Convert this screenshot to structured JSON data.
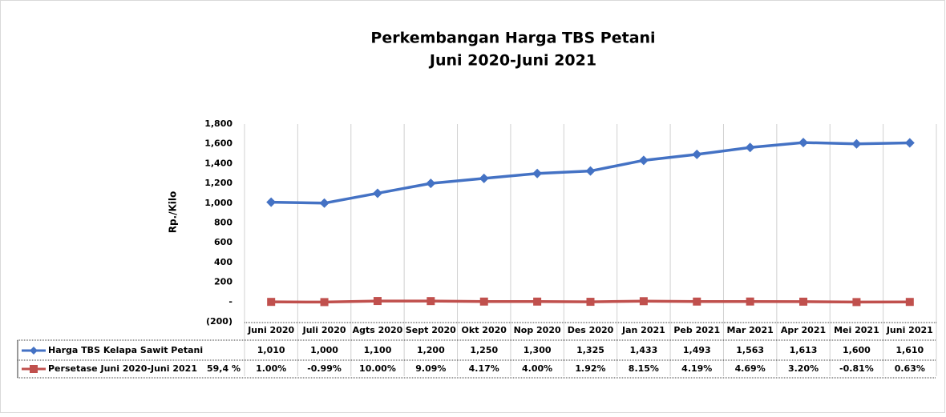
{
  "chart_data": {
    "type": "line",
    "title": "Perkembangan Harga TBS Petani",
    "subtitle": "Juni 2020-Juni 2021",
    "y_label": "Rp./Kilo",
    "categories": [
      "Juni 2020",
      "Juli 2020",
      "Agts 2020",
      "Sept 2020",
      "Okt 2020",
      "Nop 2020",
      "Des 2020",
      "Jan 2021",
      "Peb 2021",
      "Mar 2021",
      "Apr 2021",
      "Mei 2021",
      "Juni 2021"
    ],
    "series": [
      {
        "name": "Harga TBS Kelapa Sawit Petani",
        "color": "#4472c4",
        "marker": "diamond",
        "values": [
          1010,
          1000,
          1100,
          1200,
          1250,
          1300,
          1325,
          1433,
          1493,
          1563,
          1613,
          1600,
          1610
        ],
        "value_labels": [
          "1,010",
          "1,000",
          "1,100",
          "1,200",
          "1,250",
          "1,300",
          "1,325",
          "1,433",
          "1,493",
          "1,563",
          "1,613",
          "1,600",
          "1,610"
        ]
      },
      {
        "name": "Persetase Juni 2020-Juni 2021",
        "total_label": "59,4 %",
        "color": "#c0504d",
        "marker": "square",
        "values": [
          1.0,
          -0.99,
          10.0,
          9.09,
          4.17,
          4.0,
          1.92,
          8.15,
          4.19,
          4.69,
          3.2,
          -0.81,
          0.63
        ],
        "value_labels": [
          "1.00%",
          "-0.99%",
          "10.00%",
          "9.09%",
          "4.17%",
          "4.00%",
          "1.92%",
          "8.15%",
          "4.19%",
          "4.69%",
          "3.20%",
          "-0.81%",
          "0.63%"
        ]
      }
    ],
    "ylim": [
      -200,
      1800
    ],
    "yticks": [
      {
        "value": -200,
        "label": "(200)"
      },
      {
        "value": 0,
        "label": "-"
      },
      200,
      400,
      600,
      800,
      {
        "value": 1000,
        "label": "1,000"
      },
      {
        "value": 1200,
        "label": "1,200"
      },
      {
        "value": 1400,
        "label": "1,400"
      },
      {
        "value": 1600,
        "label": "1,600"
      },
      {
        "value": 1800,
        "label": "1,800"
      }
    ],
    "grid": false
  }
}
